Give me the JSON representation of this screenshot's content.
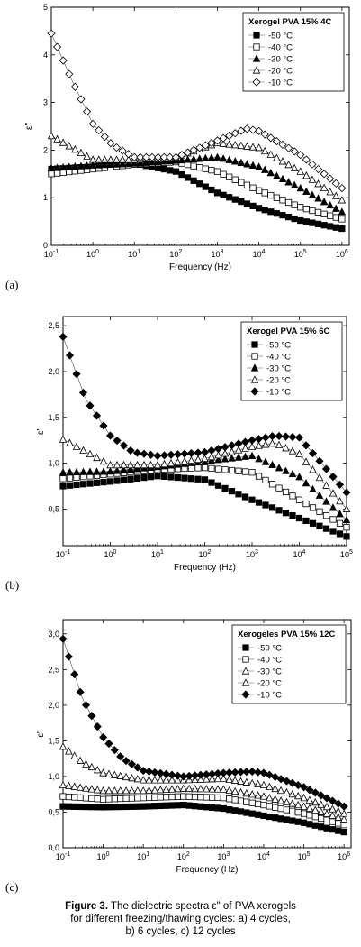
{
  "caption": {
    "label": "Figure 3.",
    "line1": "The dielectric spectra ε\" of PVA xerogels",
    "line2": "for different freezing/thawing cycles: a) 4 cycles,",
    "line3": "b) 6 cycles, c) 12 cycles"
  },
  "chart_data": [
    {
      "type": "scatter",
      "panel_label": "(a)",
      "legend_title": "Xerogel PVA 15% 4C",
      "xlabel": "Frequency (Hz)",
      "ylabel": "ε\"",
      "xscale": "log",
      "xlim": [
        0.1,
        1500000
      ],
      "ylim": [
        0,
        5
      ],
      "x_ticks": [
        "10-1",
        "100",
        "101",
        "102",
        "103",
        "104",
        "105",
        "106"
      ],
      "y_ticks": [
        "0",
        "1",
        "2",
        "3",
        "4",
        "5"
      ],
      "legend_position": "top-right",
      "series": [
        {
          "name": "-50 °C",
          "marker": "square-filled",
          "points": [
            [
              0.1,
              1.6
            ],
            [
              1,
              1.65
            ],
            [
              10,
              1.72
            ],
            [
              100,
              1.55
            ],
            [
              1000,
              1.1
            ],
            [
              10000,
              0.78
            ],
            [
              100000,
              0.52
            ],
            [
              1000000,
              0.35
            ]
          ]
        },
        {
          "name": "-40 °C",
          "marker": "square-open",
          "points": [
            [
              0.1,
              1.5
            ],
            [
              1,
              1.6
            ],
            [
              10,
              1.7
            ],
            [
              100,
              1.75
            ],
            [
              1000,
              1.55
            ],
            [
              10000,
              1.15
            ],
            [
              100000,
              0.8
            ],
            [
              1000000,
              0.55
            ]
          ]
        },
        {
          "name": "-30 °C",
          "marker": "triangle-filled",
          "points": [
            [
              0.1,
              1.62
            ],
            [
              1,
              1.68
            ],
            [
              10,
              1.72
            ],
            [
              100,
              1.78
            ],
            [
              1000,
              1.85
            ],
            [
              10000,
              1.65
            ],
            [
              100000,
              1.2
            ],
            [
              1000000,
              0.7
            ]
          ]
        },
        {
          "name": "-20 °C",
          "marker": "triangle-open",
          "points": [
            [
              0.1,
              2.3
            ],
            [
              1,
              1.8
            ],
            [
              10,
              1.8
            ],
            [
              100,
              1.85
            ],
            [
              1000,
              2.15
            ],
            [
              10000,
              2.05
            ],
            [
              100000,
              1.55
            ],
            [
              1000000,
              0.95
            ]
          ]
        },
        {
          "name": "-10 °C",
          "marker": "diamond-open",
          "points": [
            [
              0.1,
              4.45
            ],
            [
              0.3,
              3.5
            ],
            [
              1,
              2.55
            ],
            [
              3,
              2.1
            ],
            [
              10,
              1.85
            ],
            [
              100,
              1.85
            ],
            [
              1000,
              2.2
            ],
            [
              5000,
              2.45
            ],
            [
              10000,
              2.4
            ],
            [
              100000,
              1.9
            ],
            [
              1000000,
              1.2
            ]
          ]
        }
      ]
    },
    {
      "type": "scatter",
      "panel_label": "(b)",
      "legend_title": "Xerogel  PVA 15% 6C",
      "xlabel": "Frequency (Hz)",
      "ylabel": "ε\"",
      "xscale": "log",
      "xlim": [
        0.1,
        100000
      ],
      "ylim": [
        0.1,
        2.6
      ],
      "x_ticks": [
        "10-1",
        "100",
        "101",
        "102",
        "103",
        "104",
        "105"
      ],
      "y_ticks": [
        "0,5",
        "1,0",
        "1,5",
        "2,0",
        "2,5"
      ],
      "legend_position": "top-right",
      "series": [
        {
          "name": "-50 °C",
          "marker": "square-filled",
          "points": [
            [
              0.1,
              0.75
            ],
            [
              1,
              0.8
            ],
            [
              10,
              0.86
            ],
            [
              100,
              0.82
            ],
            [
              1000,
              0.6
            ],
            [
              10000,
              0.4
            ],
            [
              100000,
              0.2
            ]
          ]
        },
        {
          "name": "-40 °C",
          "marker": "square-open",
          "points": [
            [
              0.1,
              0.83
            ],
            [
              1,
              0.88
            ],
            [
              10,
              0.93
            ],
            [
              100,
              0.95
            ],
            [
              1000,
              0.9
            ],
            [
              10000,
              0.6
            ],
            [
              100000,
              0.3
            ]
          ]
        },
        {
          "name": "-30 °C",
          "marker": "triangle-filled",
          "points": [
            [
              0.1,
              0.9
            ],
            [
              1,
              0.91
            ],
            [
              10,
              0.96
            ],
            [
              100,
              1.02
            ],
            [
              1000,
              1.08
            ],
            [
              10000,
              0.85
            ],
            [
              100000,
              0.38
            ]
          ]
        },
        {
          "name": "-20 °C",
          "marker": "triangle-open",
          "points": [
            [
              0.1,
              1.26
            ],
            [
              1,
              0.98
            ],
            [
              10,
              0.98
            ],
            [
              100,
              1.05
            ],
            [
              1000,
              1.18
            ],
            [
              3000,
              1.22
            ],
            [
              10000,
              1.1
            ],
            [
              100000,
              0.5
            ]
          ]
        },
        {
          "name": "-10 °C",
          "marker": "diamond-filled",
          "points": [
            [
              0.1,
              2.38
            ],
            [
              0.3,
              1.7
            ],
            [
              1,
              1.3
            ],
            [
              3,
              1.12
            ],
            [
              10,
              1.08
            ],
            [
              100,
              1.12
            ],
            [
              1000,
              1.25
            ],
            [
              3000,
              1.3
            ],
            [
              10000,
              1.28
            ],
            [
              100000,
              0.68
            ]
          ]
        }
      ]
    },
    {
      "type": "scatter",
      "panel_label": "(c)",
      "legend_title": "Xerogeles PVA 15% 12C",
      "xlabel": "Frequency (Hz)",
      "ylabel": "ε\"",
      "xscale": "log",
      "xlim": [
        0.1,
        1500000
      ],
      "ylim": [
        0,
        3.2
      ],
      "x_ticks": [
        "10-1",
        "100",
        "101",
        "102",
        "103",
        "104",
        "105",
        "106"
      ],
      "y_ticks": [
        "0,0",
        "0,5",
        "1,0",
        "1,5",
        "2,0",
        "2,5",
        "3,0"
      ],
      "legend_position": "top-right",
      "series": [
        {
          "name": "-50 °C",
          "marker": "square-filled",
          "points": [
            [
              0.1,
              0.58
            ],
            [
              1,
              0.57
            ],
            [
              10,
              0.58
            ],
            [
              100,
              0.6
            ],
            [
              1000,
              0.55
            ],
            [
              10000,
              0.45
            ],
            [
              100000,
              0.35
            ],
            [
              1000000,
              0.22
            ]
          ]
        },
        {
          "name": "-40 °C",
          "marker": "square-open",
          "points": [
            [
              0.1,
              0.72
            ],
            [
              1,
              0.68
            ],
            [
              10,
              0.7
            ],
            [
              100,
              0.72
            ],
            [
              1000,
              0.7
            ],
            [
              10000,
              0.6
            ],
            [
              100000,
              0.48
            ],
            [
              1000000,
              0.32
            ]
          ]
        },
        {
          "name": "-30 °C",
          "marker": "triangle-open",
          "points": [
            [
              0.1,
              0.88
            ],
            [
              1,
              0.8
            ],
            [
              10,
              0.8
            ],
            [
              100,
              0.83
            ],
            [
              1000,
              0.82
            ],
            [
              10000,
              0.72
            ],
            [
              100000,
              0.58
            ],
            [
              1000000,
              0.4
            ]
          ]
        },
        {
          "name": "-20 °C",
          "marker": "triangle-open",
          "points": [
            [
              0.1,
              1.42
            ],
            [
              0.3,
              1.2
            ],
            [
              1,
              1.05
            ],
            [
              10,
              0.95
            ],
            [
              100,
              0.95
            ],
            [
              1000,
              0.97
            ],
            [
              10000,
              0.88
            ],
            [
              100000,
              0.7
            ],
            [
              1000000,
              0.48
            ]
          ]
        },
        {
          "name": "-10 °C",
          "marker": "diamond-filled",
          "points": [
            [
              0.1,
              2.93
            ],
            [
              0.3,
              2.1
            ],
            [
              1,
              1.55
            ],
            [
              3,
              1.25
            ],
            [
              10,
              1.08
            ],
            [
              100,
              1.0
            ],
            [
              1000,
              1.05
            ],
            [
              5000,
              1.07
            ],
            [
              10000,
              1.05
            ],
            [
              100000,
              0.85
            ],
            [
              1000000,
              0.58
            ]
          ]
        }
      ]
    }
  ]
}
